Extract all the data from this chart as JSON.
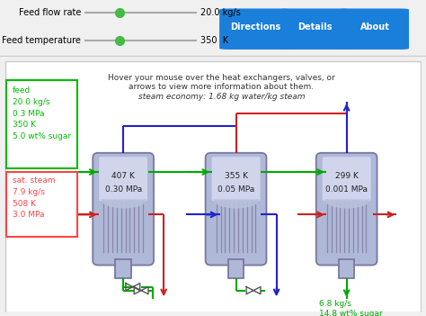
{
  "title_instruction": "Hover your mouse over the heat exchangers, valves, or\narrows to view more information about them.",
  "title_economy": "steam economy: 1.68 kg water/kg steam",
  "bg_color": "#f0f0f0",
  "main_bg": "#ffffff",
  "slider_label1": "Feed flow rate",
  "slider_value1": "20.0 kg/s",
  "slider_label2": "Feed temperature",
  "slider_value2": "350  K",
  "btn_labels": [
    "Directions",
    "Details",
    "About"
  ],
  "btn_color": "#1a7fdb",
  "btn_text_color": "#ffffff",
  "evaporator_temps": [
    "407 K",
    "355 K",
    "299 K"
  ],
  "evaporator_press": [
    "0.30 MPa",
    "0.05 MPa",
    "0.001 MPa"
  ],
  "feed_box_color": "#00bb00",
  "steam_box_color": "#ff4444",
  "product_color": "#00aa00",
  "evap_body_color": "#b0b8d8",
  "evap_upper_color": "#d0d5ec",
  "evap_border_color": "#7878a0",
  "evap_tube_color": "#8888a8",
  "green": "#00aa00",
  "blue": "#2222cc",
  "red": "#cc2222"
}
